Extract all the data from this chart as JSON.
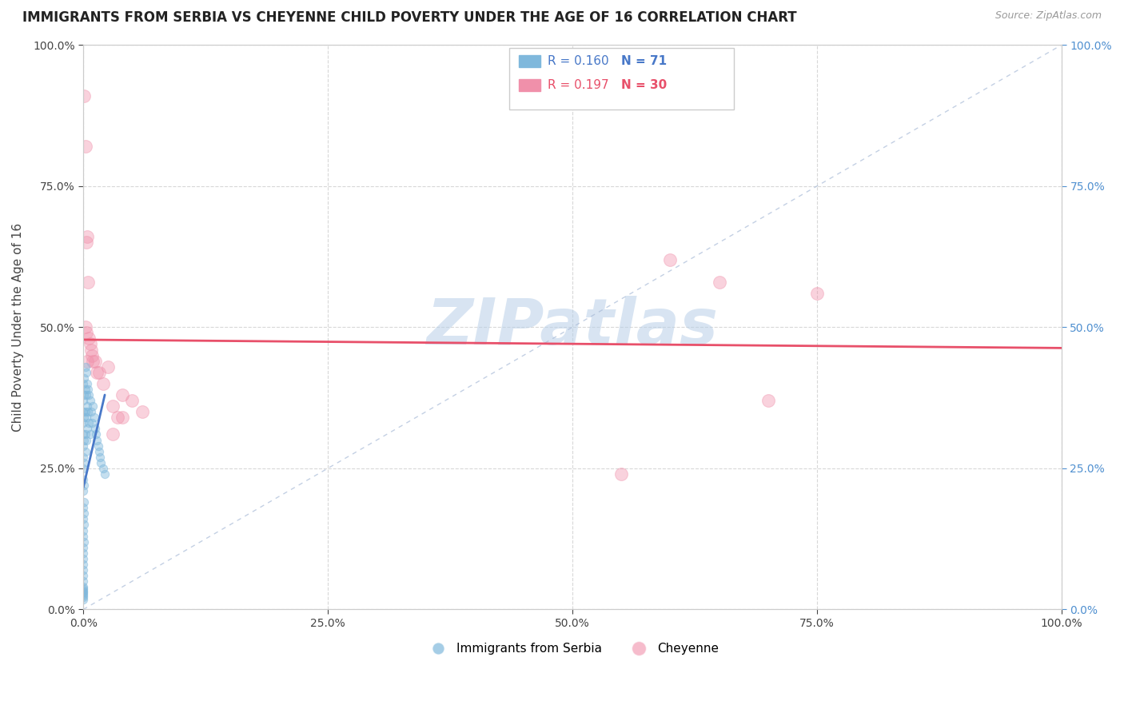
{
  "title": "IMMIGRANTS FROM SERBIA VS CHEYENNE CHILD POVERTY UNDER THE AGE OF 16 CORRELATION CHART",
  "source": "Source: ZipAtlas.com",
  "ylabel": "Child Poverty Under the Age of 16",
  "xlim": [
    0,
    1
  ],
  "ylim": [
    0,
    1
  ],
  "serbia_color": "#7fb8dc",
  "cheyenne_color": "#f090aa",
  "serbia_line_color": "#4878c8",
  "cheyenne_line_color": "#e8506a",
  "diagonal_color": "#aabcd8",
  "background_color": "#ffffff",
  "grid_color": "#d8d8d8",
  "watermark": "ZIPatlas",
  "right_axis_color": "#5090d0",
  "serbia_r": "0.160",
  "serbia_n": "71",
  "cheyenne_r": "0.197",
  "cheyenne_n": "30",
  "legend_serbia_label": "Immigrants from Serbia",
  "legend_cheyenne_label": "Cheyenne",
  "serbia_points_x": [
    0.0,
    0.0,
    0.0,
    0.0,
    0.0,
    0.0,
    0.0,
    0.0,
    0.0,
    0.0,
    0.0,
    0.0,
    0.0,
    0.0,
    0.0,
    0.0,
    0.0,
    0.0,
    0.0,
    0.0,
    0.0,
    0.0,
    0.0,
    0.0,
    0.0,
    0.0,
    0.0,
    0.0,
    0.0,
    0.0,
    0.001,
    0.001,
    0.001,
    0.001,
    0.001,
    0.001,
    0.001,
    0.001,
    0.001,
    0.001,
    0.002,
    0.002,
    0.002,
    0.002,
    0.002,
    0.003,
    0.003,
    0.003,
    0.003,
    0.004,
    0.004,
    0.004,
    0.005,
    0.005,
    0.006,
    0.006,
    0.007,
    0.007,
    0.008,
    0.009,
    0.01,
    0.011,
    0.012,
    0.013,
    0.014,
    0.015,
    0.016,
    0.017,
    0.018,
    0.02,
    0.022
  ],
  "serbia_points_y": [
    0.4,
    0.37,
    0.35,
    0.33,
    0.31,
    0.29,
    0.27,
    0.25,
    0.23,
    0.21,
    0.18,
    0.16,
    0.14,
    0.13,
    0.11,
    0.1,
    0.09,
    0.08,
    0.07,
    0.06,
    0.05,
    0.04,
    0.038,
    0.035,
    0.032,
    0.03,
    0.028,
    0.025,
    0.022,
    0.018,
    0.41,
    0.38,
    0.34,
    0.3,
    0.26,
    0.22,
    0.19,
    0.17,
    0.15,
    0.12,
    0.43,
    0.39,
    0.35,
    0.31,
    0.28,
    0.42,
    0.38,
    0.34,
    0.3,
    0.4,
    0.36,
    0.32,
    0.39,
    0.35,
    0.38,
    0.33,
    0.37,
    0.31,
    0.35,
    0.33,
    0.36,
    0.34,
    0.32,
    0.31,
    0.3,
    0.29,
    0.28,
    0.27,
    0.26,
    0.25,
    0.24
  ],
  "cheyenne_points_x": [
    0.001,
    0.002,
    0.003,
    0.004,
    0.005,
    0.006,
    0.007,
    0.008,
    0.009,
    0.01,
    0.012,
    0.014,
    0.016,
    0.02,
    0.025,
    0.03,
    0.035,
    0.04,
    0.05,
    0.06,
    0.002,
    0.003,
    0.004,
    0.03,
    0.04,
    0.6,
    0.65,
    0.7,
    0.75,
    0.55
  ],
  "cheyenne_points_y": [
    0.91,
    0.82,
    0.65,
    0.66,
    0.58,
    0.48,
    0.47,
    0.46,
    0.45,
    0.44,
    0.44,
    0.42,
    0.42,
    0.4,
    0.43,
    0.36,
    0.34,
    0.34,
    0.37,
    0.35,
    0.5,
    0.49,
    0.44,
    0.31,
    0.38,
    0.62,
    0.58,
    0.37,
    0.56,
    0.24
  ]
}
